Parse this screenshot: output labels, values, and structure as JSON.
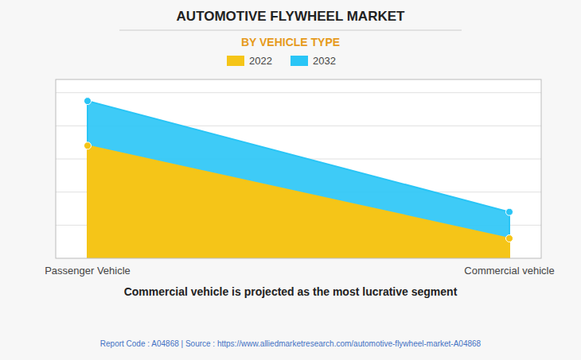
{
  "chart_data": {
    "type": "area",
    "title": "AUTOMOTIVE FLYWHEEL MARKET",
    "subtitle": "BY VEHICLE TYPE",
    "categories": [
      "Passenger Vehicle",
      "Commercial vehicle"
    ],
    "series": [
      {
        "name": "2022",
        "color": "#F5C518",
        "values": [
          0.68,
          0.12
        ]
      },
      {
        "name": "2032",
        "color": "#29C5F6",
        "values": [
          0.95,
          0.28
        ]
      }
    ],
    "ylim": [
      0,
      1.08
    ],
    "yticks": [
      0.2,
      0.4,
      0.6,
      0.8,
      1.0
    ],
    "grid": true,
    "tick_labels": "x",
    "legend": "top",
    "marker": "circle",
    "annotations": [
      "Commercial vehicle is projected as the most lucrative segment",
      "Report Code : A04868  |  Source : https://www.alliedmarketresearch.com/automotive-flywheel-market-A04868"
    ]
  }
}
